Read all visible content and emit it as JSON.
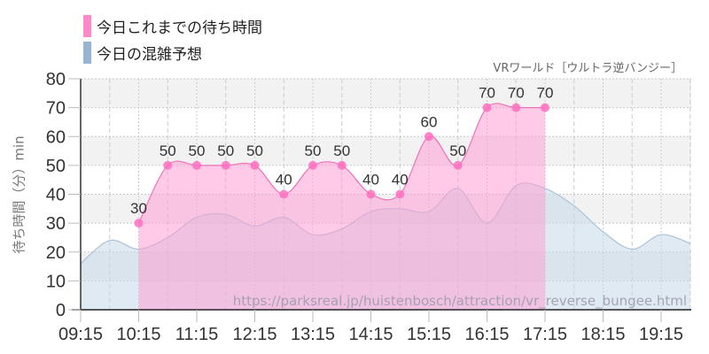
{
  "legend": [
    {
      "label": "今日これまでの待ち時間",
      "color": "#ff88c8"
    },
    {
      "label": "今日の混雑予想",
      "color": "#94b6d2"
    }
  ],
  "subtitle": "VRワールド［ウルトラ逆バンジー］",
  "watermark": "https://parksreal.jp/huistenbosch/attraction/vr_reverse_bungee.html",
  "chart_data": {
    "type": "area",
    "title": "",
    "subtitle": "VRワールド［ウルトラ逆バンジー］",
    "xlabel": "",
    "ylabel": "待ち時間（分）min",
    "ylim": [
      0,
      80
    ],
    "yticks": [
      0,
      10,
      20,
      30,
      40,
      50,
      60,
      70,
      80
    ],
    "xticks": [
      "09:15",
      "10:15",
      "11:15",
      "12:15",
      "13:15",
      "14:15",
      "15:15",
      "16:15",
      "17:15",
      "18:15",
      "19:15"
    ],
    "grid": true,
    "legend_position": "top-left",
    "series": [
      {
        "name": "今日これまでの待ち時間",
        "color": "#ff88c8",
        "x": [
          "10:15",
          "10:45",
          "11:15",
          "11:45",
          "12:15",
          "12:45",
          "13:15",
          "13:45",
          "14:15",
          "14:45",
          "15:15",
          "15:45",
          "16:15",
          "16:45",
          "17:15"
        ],
        "values": [
          30,
          50,
          50,
          50,
          50,
          40,
          50,
          50,
          40,
          40,
          60,
          50,
          70,
          70,
          70
        ],
        "data_labels": true
      },
      {
        "name": "今日の混雑予想",
        "color": "#94b6d2",
        "x": [
          "09:15",
          "09:45",
          "10:15",
          "10:45",
          "11:15",
          "11:45",
          "12:15",
          "12:45",
          "13:15",
          "13:45",
          "14:15",
          "14:45",
          "15:15",
          "15:45",
          "16:15",
          "16:45",
          "17:15",
          "17:45",
          "18:15",
          "18:45",
          "19:15",
          "19:45"
        ],
        "values": [
          16,
          24,
          21,
          25,
          32,
          33,
          29,
          32,
          26,
          28,
          34,
          35,
          34,
          42,
          30,
          43,
          42,
          36,
          27,
          21,
          26,
          23
        ]
      }
    ]
  }
}
